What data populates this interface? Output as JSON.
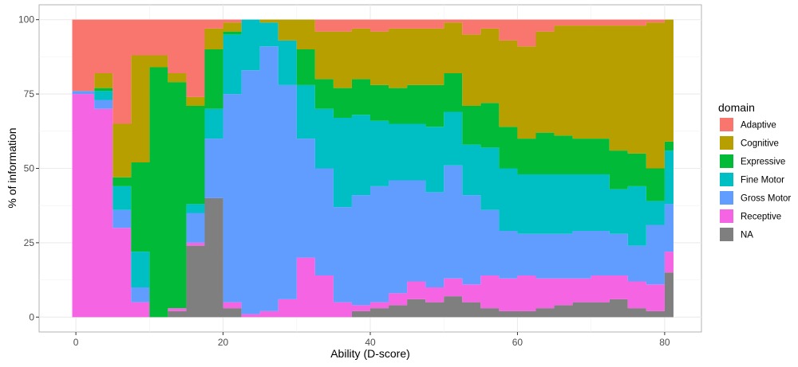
{
  "chart_data": {
    "type": "area",
    "stacked": true,
    "xlabel": "Ability (D-score)",
    "ylabel": "% of information",
    "xlim": [
      -5,
      85
    ],
    "ylim": [
      -5,
      105
    ],
    "xticks": [
      0,
      20,
      40,
      60,
      80
    ],
    "yticks": [
      0,
      25,
      50,
      75,
      100
    ],
    "grid": true,
    "legend": {
      "title": "domain",
      "position": "right"
    },
    "x": [
      -0.5,
      2.5,
      5,
      7.5,
      10,
      12.5,
      15,
      17.5,
      20,
      22.5,
      25,
      27.5,
      30,
      32.5,
      35,
      37.5,
      40,
      42.5,
      45,
      47.5,
      50,
      52.5,
      55,
      57.5,
      60,
      62.5,
      65,
      67.5,
      70,
      72.5,
      75,
      77.5,
      80
    ],
    "series": [
      {
        "name": "NA",
        "color": "#7f7f7f",
        "values": [
          0,
          0,
          0,
          0,
          0,
          2,
          24,
          40,
          3,
          0,
          0,
          0,
          0,
          0,
          0,
          2,
          3,
          4,
          6,
          5,
          7,
          5,
          3,
          2,
          2,
          3,
          4,
          5,
          5,
          6,
          3,
          2,
          15
        ]
      },
      {
        "name": "Receptive",
        "color": "#f564e3",
        "values": [
          75,
          70,
          30,
          5,
          0,
          1,
          1,
          0,
          2,
          1,
          2,
          6,
          20,
          14,
          5,
          2,
          2,
          4,
          6,
          5,
          6,
          6,
          11,
          11,
          12,
          10,
          9,
          8,
          9,
          8,
          9,
          9,
          7
        ]
      },
      {
        "name": "Gross Motor",
        "color": "#619cff",
        "values": [
          1,
          3,
          6,
          5,
          0,
          0,
          10,
          20,
          70,
          82,
          89,
          72,
          40,
          36,
          32,
          37,
          39,
          38,
          34,
          32,
          38,
          30,
          22,
          16,
          14,
          15,
          15,
          16,
          15,
          14,
          12,
          20,
          16
        ]
      },
      {
        "name": "Fine Motor",
        "color": "#00bfc4",
        "values": [
          0,
          3,
          8,
          12,
          0,
          0,
          3,
          10,
          20,
          17,
          8,
          15,
          18,
          20,
          30,
          27,
          22,
          19,
          19,
          22,
          18,
          17,
          21,
          21,
          20,
          20,
          20,
          19,
          19,
          15,
          20,
          8,
          18
        ]
      },
      {
        "name": "Expressive",
        "color": "#00ba38",
        "values": [
          0,
          1,
          3,
          30,
          84,
          76,
          33,
          20,
          1,
          0,
          0,
          0,
          12,
          10,
          10,
          12,
          12,
          12,
          13,
          14,
          13,
          13,
          15,
          14,
          12,
          14,
          13,
          12,
          12,
          13,
          11,
          11,
          3
        ]
      },
      {
        "name": "Cognitive",
        "color": "#b79f00",
        "values": [
          0,
          5,
          18,
          36,
          4,
          3,
          3,
          7,
          3,
          0,
          1,
          7,
          10,
          16,
          19,
          17,
          18,
          20,
          19,
          19,
          17,
          24,
          25,
          29,
          31,
          34,
          37,
          38,
          38,
          42,
          43,
          49,
          41
        ]
      },
      {
        "name": "Adaptive",
        "color": "#f8766d",
        "values": [
          24,
          18,
          35,
          12,
          12,
          18,
          26,
          3,
          1,
          0,
          0,
          0,
          0,
          4,
          4,
          3,
          4,
          3,
          3,
          3,
          1,
          5,
          3,
          7,
          9,
          4,
          2,
          2,
          2,
          2,
          2,
          1,
          0
        ]
      }
    ],
    "legend_order": [
      "Adaptive",
      "Cognitive",
      "Expressive",
      "Fine Motor",
      "Gross Motor",
      "Receptive",
      "NA"
    ]
  }
}
